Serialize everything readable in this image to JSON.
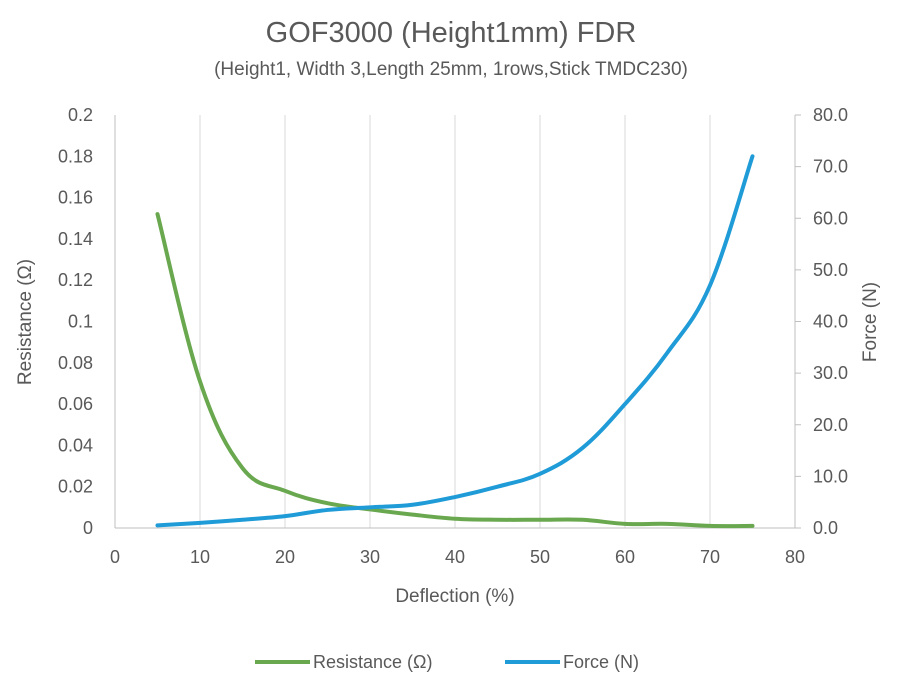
{
  "chart_data": {
    "type": "line",
    "title": "GOF3000 (Height1mm) FDR",
    "subtitle": "(Height1, Width 3,Length 25mm, 1rows,Stick TMDC230)",
    "xlabel": "Deflection (%)",
    "ylabel": "Resistance (Ω)",
    "y2label": "Force (N)",
    "xlim": [
      0,
      80
    ],
    "ylim": [
      0,
      0.2
    ],
    "y2lim": [
      0,
      80
    ],
    "xticks": [
      "0",
      "10",
      "20",
      "30",
      "40",
      "50",
      "60",
      "70",
      "80"
    ],
    "yticks": [
      "0",
      "0.02",
      "0.04",
      "0.06",
      "0.08",
      "0.1",
      "0.12",
      "0.14",
      "0.16",
      "0.18",
      "0.2"
    ],
    "y2ticks": [
      "0.0",
      "10.0",
      "20.0",
      "30.0",
      "40.0",
      "50.0",
      "60.0",
      "70.0",
      "80.0"
    ],
    "grid": "vertical",
    "legend_position": "bottom",
    "series": [
      {
        "name": "Resistance (Ω)",
        "axis": "left",
        "color": "#6aa84f",
        "x": [
          5,
          10,
          15,
          20,
          25,
          30,
          35,
          40,
          45,
          50,
          55,
          60,
          65,
          70,
          75
        ],
        "values": [
          0.152,
          0.071,
          0.029,
          0.018,
          0.012,
          0.009,
          0.0065,
          0.0045,
          0.004,
          0.004,
          0.004,
          0.002,
          0.002,
          0.001,
          0.001
        ]
      },
      {
        "name": "Force (N)",
        "axis": "right",
        "color": "#1f9bd7",
        "x": [
          5,
          10,
          15,
          20,
          25,
          30,
          35,
          40,
          45,
          50,
          55,
          60,
          65,
          70,
          75
        ],
        "values": [
          0.5,
          1,
          1.6,
          2.3,
          3.5,
          4.0,
          4.5,
          6,
          8,
          10.5,
          15.5,
          24,
          34,
          47,
          72
        ]
      }
    ]
  }
}
